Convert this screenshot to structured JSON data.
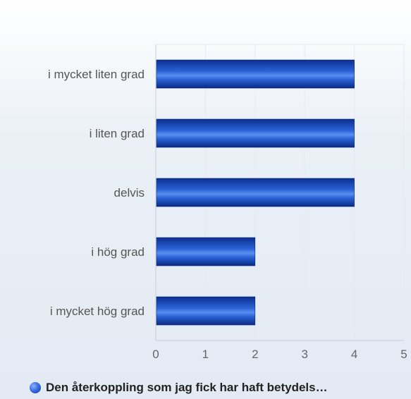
{
  "chart_data": {
    "type": "bar",
    "orientation": "horizontal",
    "categories": [
      "i mycket liten grad",
      "i liten grad",
      "delvis",
      "i hög grad",
      "i mycket hög grad"
    ],
    "series": [
      {
        "name": "Den återkoppling som jag fick har haft betydels…",
        "values": [
          4,
          4,
          4,
          2,
          2
        ]
      }
    ],
    "xlim": [
      0,
      5
    ],
    "xticks": [
      "0",
      "1",
      "2",
      "3",
      "4",
      "5"
    ],
    "grid": true,
    "legend_position": "bottom",
    "colors": {
      "bar_light": "#4d84ea",
      "bar_mid": "#1d55cc",
      "bar_dark": "#0a2f93",
      "axis": "#c7cfdc",
      "grid": "#e6eaf0",
      "label": "#555555",
      "tick": "#666666"
    }
  }
}
